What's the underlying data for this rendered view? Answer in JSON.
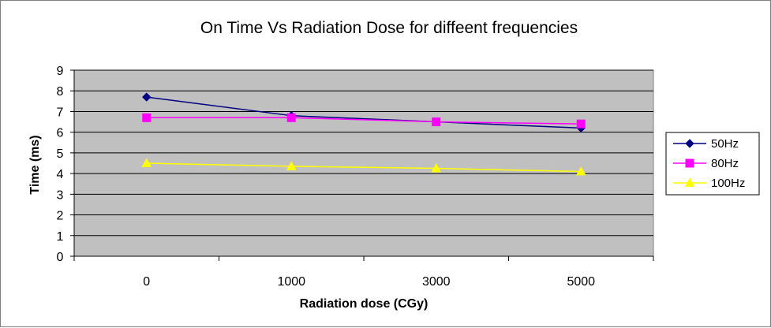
{
  "chart_data": {
    "type": "line",
    "title": "On Time Vs Radiation Dose for diffeent frequencies",
    "xlabel": "Radiation dose (CGy)",
    "ylabel": "Time (ms)",
    "categories": [
      "0",
      "1000",
      "3000",
      "5000"
    ],
    "ylim": [
      0,
      9
    ],
    "yticks": [
      "0",
      "1",
      "2",
      "3",
      "4",
      "5",
      "6",
      "7",
      "8",
      "9"
    ],
    "grid": true,
    "legend_position": "right",
    "plot_background": "#c0c0c0",
    "series": [
      {
        "name": "50Hz",
        "values": [
          7.7,
          6.8,
          6.5,
          6.2
        ],
        "color": "#000080",
        "marker": "diamond"
      },
      {
        "name": "80Hz",
        "values": [
          6.7,
          6.7,
          6.5,
          6.4
        ],
        "color": "#ff00ff",
        "marker": "square"
      },
      {
        "name": "100Hz",
        "values": [
          4.5,
          4.35,
          4.25,
          4.1
        ],
        "color": "#ffff00",
        "marker": "triangle"
      }
    ]
  }
}
